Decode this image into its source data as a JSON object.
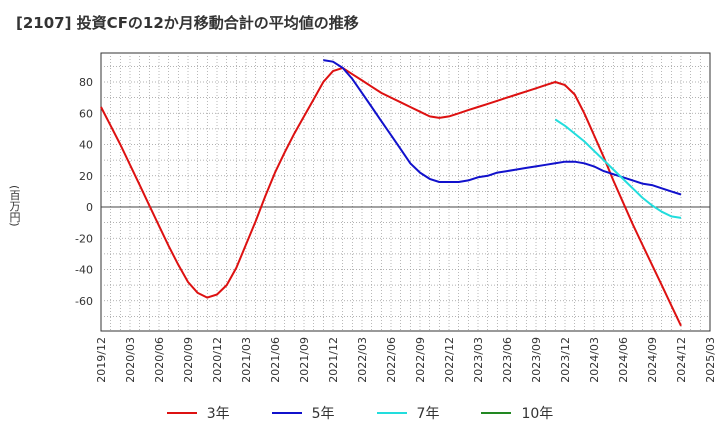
{
  "chart_data": {
    "type": "line",
    "title": "[2107]  投資CFの12か月移動合計の平均値の推移",
    "ylabel": "(百万円)",
    "xlabel": "",
    "ylim": [
      -80,
      100
    ],
    "yticks": [
      80,
      60,
      40,
      20,
      0,
      -20,
      -40,
      -60
    ],
    "x_tick_labels": [
      "2019/12",
      "2020/03",
      "2020/06",
      "2020/09",
      "2020/12",
      "2021/03",
      "2021/06",
      "2021/09",
      "2021/12",
      "2022/03",
      "2022/06",
      "2022/09",
      "2022/12",
      "2023/03",
      "2023/06",
      "2023/09",
      "2023/12",
      "2024/03",
      "2024/06",
      "2024/09",
      "2024/12",
      "2025/03"
    ],
    "grid": true,
    "legend_position": "bottom",
    "series": [
      {
        "name": "3年",
        "color": "#dd1111",
        "points": [
          [
            "2019/12",
            64
          ],
          [
            "2020/01",
            52
          ],
          [
            "2020/02",
            40
          ],
          [
            "2020/03",
            27
          ],
          [
            "2020/04",
            14
          ],
          [
            "2020/05",
            1
          ],
          [
            "2020/06",
            -12
          ],
          [
            "2020/07",
            -25
          ],
          [
            "2020/08",
            -37
          ],
          [
            "2020/09",
            -48
          ],
          [
            "2020/10",
            -55
          ],
          [
            "2020/11",
            -58
          ],
          [
            "2020/12",
            -56
          ],
          [
            "2021/01",
            -50
          ],
          [
            "2021/02",
            -39
          ],
          [
            "2021/03",
            -24
          ],
          [
            "2021/04",
            -9
          ],
          [
            "2021/05",
            7
          ],
          [
            "2021/06",
            22
          ],
          [
            "2021/07",
            35
          ],
          [
            "2021/08",
            47
          ],
          [
            "2021/09",
            58
          ],
          [
            "2021/10",
            69
          ],
          [
            "2021/11",
            80
          ],
          [
            "2021/12",
            87
          ],
          [
            "2022/01",
            89
          ],
          [
            "2022/02",
            85
          ],
          [
            "2022/03",
            81
          ],
          [
            "2022/04",
            77
          ],
          [
            "2022/05",
            73
          ],
          [
            "2022/06",
            70
          ],
          [
            "2022/07",
            67
          ],
          [
            "2022/08",
            64
          ],
          [
            "2022/09",
            61
          ],
          [
            "2022/10",
            58
          ],
          [
            "2022/11",
            57
          ],
          [
            "2022/12",
            58
          ],
          [
            "2023/01",
            60
          ],
          [
            "2023/02",
            62
          ],
          [
            "2023/03",
            64
          ],
          [
            "2023/04",
            66
          ],
          [
            "2023/05",
            68
          ],
          [
            "2023/06",
            70
          ],
          [
            "2023/07",
            72
          ],
          [
            "2023/08",
            74
          ],
          [
            "2023/09",
            76
          ],
          [
            "2023/10",
            78
          ],
          [
            "2023/11",
            80
          ],
          [
            "2023/12",
            78
          ],
          [
            "2024/01",
            72
          ],
          [
            "2024/02",
            60
          ],
          [
            "2024/03",
            46
          ],
          [
            "2024/04",
            32
          ],
          [
            "2024/05",
            17
          ],
          [
            "2024/06",
            3
          ],
          [
            "2024/07",
            -11
          ],
          [
            "2024/08",
            -24
          ],
          [
            "2024/09",
            -37
          ],
          [
            "2024/10",
            -50
          ],
          [
            "2024/11",
            -63
          ],
          [
            "2024/12",
            -76
          ]
        ]
      },
      {
        "name": "5年",
        "color": "#1111cc",
        "points": [
          [
            "2021/11",
            94
          ],
          [
            "2021/12",
            93
          ],
          [
            "2022/01",
            89
          ],
          [
            "2022/02",
            82
          ],
          [
            "2022/03",
            73
          ],
          [
            "2022/04",
            64
          ],
          [
            "2022/05",
            55
          ],
          [
            "2022/06",
            46
          ],
          [
            "2022/07",
            37
          ],
          [
            "2022/08",
            28
          ],
          [
            "2022/09",
            22
          ],
          [
            "2022/10",
            18
          ],
          [
            "2022/11",
            16
          ],
          [
            "2022/12",
            16
          ],
          [
            "2023/01",
            16
          ],
          [
            "2023/02",
            17
          ],
          [
            "2023/03",
            19
          ],
          [
            "2023/04",
            20
          ],
          [
            "2023/05",
            22
          ],
          [
            "2023/06",
            23
          ],
          [
            "2023/07",
            24
          ],
          [
            "2023/08",
            25
          ],
          [
            "2023/09",
            26
          ],
          [
            "2023/10",
            27
          ],
          [
            "2023/11",
            28
          ],
          [
            "2023/12",
            29
          ],
          [
            "2024/01",
            29
          ],
          [
            "2024/02",
            28
          ],
          [
            "2024/03",
            26
          ],
          [
            "2024/04",
            23
          ],
          [
            "2024/05",
            21
          ],
          [
            "2024/06",
            19
          ],
          [
            "2024/07",
            17
          ],
          [
            "2024/08",
            15
          ],
          [
            "2024/09",
            14
          ],
          [
            "2024/10",
            12
          ],
          [
            "2024/11",
            10
          ],
          [
            "2024/12",
            8
          ]
        ]
      },
      {
        "name": "7年",
        "color": "#22dddd",
        "points": [
          [
            "2023/11",
            56
          ],
          [
            "2023/12",
            52
          ],
          [
            "2024/01",
            47
          ],
          [
            "2024/02",
            42
          ],
          [
            "2024/03",
            36
          ],
          [
            "2024/04",
            30
          ],
          [
            "2024/05",
            24
          ],
          [
            "2024/06",
            18
          ],
          [
            "2024/07",
            12
          ],
          [
            "2024/08",
            6
          ],
          [
            "2024/09",
            1
          ],
          [
            "2024/10",
            -3
          ],
          [
            "2024/11",
            -6
          ],
          [
            "2024/12",
            -7
          ]
        ]
      },
      {
        "name": "10年",
        "color": "#228822",
        "points": []
      }
    ]
  }
}
